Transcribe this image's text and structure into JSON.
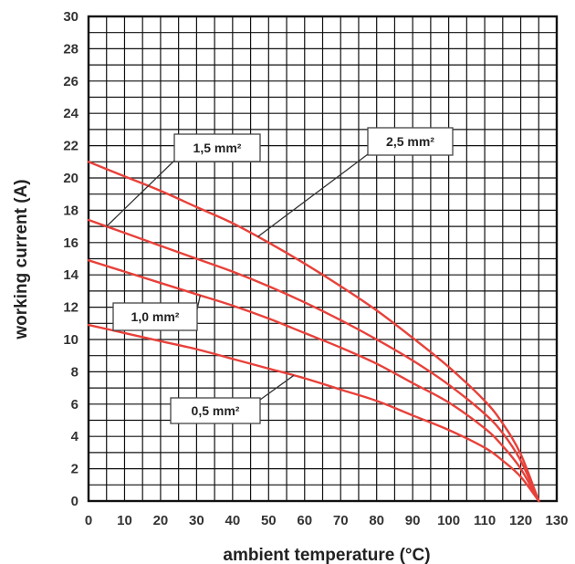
{
  "chart_data": {
    "type": "line",
    "xlabel": "ambient temperature (°C)",
    "ylabel": "working current (A)",
    "xlim": [
      0,
      130
    ],
    "ylim": [
      0,
      30
    ],
    "x_ticks": [
      0,
      10,
      20,
      30,
      40,
      50,
      60,
      70,
      80,
      90,
      100,
      110,
      120,
      130
    ],
    "y_ticks": [
      0,
      2,
      4,
      6,
      8,
      10,
      12,
      14,
      16,
      18,
      20,
      22,
      24,
      26,
      28,
      30
    ],
    "x_minor_step": 5,
    "y_minor_step": 1,
    "grid": true,
    "series": [
      {
        "name": "2,5 mm²",
        "x": [
          0,
          10,
          20,
          30,
          40,
          50,
          60,
          70,
          80,
          90,
          100,
          110,
          115,
          120,
          125
        ],
        "y": [
          21.0,
          20.1,
          19.2,
          18.2,
          17.2,
          16.0,
          14.7,
          13.3,
          11.8,
          10.1,
          8.3,
          6.2,
          4.8,
          2.9,
          0.0
        ]
      },
      {
        "name": "1,5 mm²",
        "x": [
          0,
          10,
          20,
          30,
          40,
          50,
          60,
          70,
          80,
          90,
          100,
          110,
          115,
          120,
          125
        ],
        "y": [
          17.4,
          16.6,
          15.8,
          15.0,
          14.2,
          13.3,
          12.3,
          11.2,
          10.0,
          8.7,
          7.2,
          5.4,
          4.2,
          2.5,
          0.0
        ]
      },
      {
        "name": "1,0 mm²",
        "x": [
          0,
          10,
          20,
          30,
          40,
          50,
          60,
          70,
          80,
          90,
          100,
          110,
          115,
          120,
          125
        ],
        "y": [
          14.9,
          14.2,
          13.5,
          12.8,
          12.1,
          11.3,
          10.4,
          9.5,
          8.5,
          7.3,
          6.1,
          4.5,
          3.4,
          2.0,
          0.0
        ]
      },
      {
        "name": "0,5 mm²",
        "x": [
          0,
          10,
          20,
          30,
          40,
          50,
          60,
          70,
          80,
          90,
          100,
          110,
          115,
          120,
          125
        ],
        "y": [
          10.9,
          10.4,
          9.9,
          9.4,
          8.8,
          8.2,
          7.6,
          6.9,
          6.2,
          5.3,
          4.4,
          3.3,
          2.5,
          1.5,
          0.0
        ]
      }
    ],
    "callouts": [
      {
        "series": "1,5 mm²",
        "label": "1,5 mm²",
        "anchor_x": 5
      },
      {
        "series": "2,5 mm²",
        "label": "2,5 mm²",
        "anchor_x": 47
      },
      {
        "series": "1,0 mm²",
        "label": "1,0 mm²",
        "anchor_x": 31
      },
      {
        "series": "0,5 mm²",
        "label": "0,5 mm²",
        "anchor_x": 57
      }
    ],
    "colors": {
      "curve": "#e8413a",
      "grid": "#111111",
      "background": "#ffffff"
    }
  }
}
